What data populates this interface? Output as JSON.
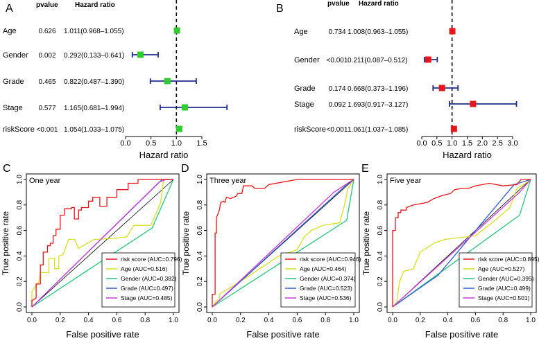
{
  "chart_data": [
    {
      "type": "forest",
      "panel_label": "A",
      "col_pvalue": "pvalue",
      "col_hr": "Hazard ratio",
      "xlabel": "Hazard ratio",
      "xlim": [
        0,
        1.5
      ],
      "xticks": [
        "0.0",
        "0.5",
        "1.0",
        "1.5"
      ],
      "ref_line": 1,
      "color": "#2ecc2e",
      "rows": [
        {
          "label": "Age",
          "pvalue": "0.626",
          "hr_text": "1.011(0.968–1.055)",
          "hr": 1.011,
          "low": 0.968,
          "high": 1.055
        },
        {
          "label": "Gender",
          "pvalue": "0.002",
          "hr_text": "0.292(0.133–0.641)",
          "hr": 0.292,
          "low": 0.133,
          "high": 0.641
        },
        {
          "label": "Grade",
          "pvalue": "0.465",
          "hr_text": "0.822(0.487–1.390)",
          "hr": 0.822,
          "low": 0.487,
          "high": 1.39
        },
        {
          "label": "Stage",
          "pvalue": "0.577",
          "hr_text": "1.165(0.681–1.994)",
          "hr": 1.165,
          "low": 0.681,
          "high": 1.994
        },
        {
          "label": "riskScore",
          "pvalue": "<0.001",
          "hr_text": "1.054(1.033–1.075)",
          "hr": 1.054,
          "low": 1.033,
          "high": 1.075
        }
      ]
    },
    {
      "type": "forest",
      "panel_label": "B",
      "col_pvalue": "pvalue",
      "col_hr": "Hazard ratio",
      "xlabel": "Hazard ratio",
      "xlim": [
        0,
        3.0
      ],
      "xticks": [
        "0.0",
        "0.5",
        "1.0",
        "1.5",
        "2.0",
        "2.5",
        "3.0"
      ],
      "ref_line": 1,
      "color": "#e8151b",
      "rows": [
        {
          "label": "Age",
          "pvalue": "0.734",
          "hr_text": "1.008(0.963–1.055)",
          "hr": 1.008,
          "low": 0.963,
          "high": 1.055
        },
        {
          "label": "Gender",
          "pvalue": "<0.001",
          "hr_text": "0.211(0.087–0.512)",
          "hr": 0.211,
          "low": 0.087,
          "high": 0.512
        },
        {
          "label": "Grade",
          "pvalue": "0.174",
          "hr_text": "0.668(0.373–1.196)",
          "hr": 0.668,
          "low": 0.373,
          "high": 1.196
        },
        {
          "label": "Stage",
          "pvalue": "0.092",
          "hr_text": "1.693(0.917–3.127)",
          "hr": 1.693,
          "low": 0.917,
          "high": 3.127
        },
        {
          "label": "riskScore",
          "pvalue": "<0.001",
          "hr_text": "1.061(1.037–1.085)",
          "hr": 1.061,
          "low": 1.037,
          "high": 1.085
        }
      ]
    },
    {
      "type": "line",
      "panel_label": "C",
      "title": "One year",
      "xlabel": "False positive rate",
      "ylabel": "True positive rate",
      "xlim": [
        0,
        1
      ],
      "ylim": [
        0,
        1
      ],
      "xticks": [
        "0.0",
        "0.2",
        "0.4",
        "0.6",
        "0.8",
        "1.0"
      ],
      "yticks": [
        "0.0",
        "0.2",
        "0.4",
        "0.6",
        "0.8",
        "1.0"
      ],
      "series": [
        {
          "name": "risk score (AUC=0.796)",
          "color": "#e8151b",
          "points": [
            [
              0,
              0
            ],
            [
              0,
              0.05
            ],
            [
              0.03,
              0.07
            ],
            [
              0.03,
              0.18
            ],
            [
              0.06,
              0.18
            ],
            [
              0.06,
              0.33
            ],
            [
              0.08,
              0.33
            ],
            [
              0.08,
              0.43
            ],
            [
              0.11,
              0.43
            ],
            [
              0.11,
              0.48
            ],
            [
              0.13,
              0.48
            ],
            [
              0.13,
              0.5
            ],
            [
              0.15,
              0.5
            ],
            [
              0.15,
              0.56
            ],
            [
              0.17,
              0.56
            ],
            [
              0.17,
              0.61
            ],
            [
              0.2,
              0.61
            ],
            [
              0.2,
              0.72
            ],
            [
              0.23,
              0.72
            ],
            [
              0.23,
              0.77
            ],
            [
              0.28,
              0.77
            ],
            [
              0.28,
              0.78
            ],
            [
              0.3,
              0.78
            ],
            [
              0.3,
              0.69
            ],
            [
              0.33,
              0.69
            ],
            [
              0.33,
              0.76
            ],
            [
              0.35,
              0.76
            ],
            [
              0.35,
              0.78
            ],
            [
              0.4,
              0.78
            ],
            [
              0.4,
              0.83
            ],
            [
              0.43,
              0.83
            ],
            [
              0.43,
              0.86
            ],
            [
              0.48,
              0.86
            ],
            [
              0.48,
              0.79
            ],
            [
              0.53,
              0.79
            ],
            [
              0.53,
              0.86
            ],
            [
              0.6,
              0.86
            ],
            [
              0.6,
              0.92
            ],
            [
              0.68,
              0.92
            ],
            [
              0.68,
              0.97
            ],
            [
              0.75,
              0.97
            ],
            [
              0.75,
              1
            ],
            [
              1,
              1
            ]
          ]
        },
        {
          "name": "Age (AUC=0.516)",
          "color": "#d9e021",
          "points": [
            [
              0,
              0
            ],
            [
              0,
              0.12
            ],
            [
              0.05,
              0.2
            ],
            [
              0.06,
              0.27
            ],
            [
              0.12,
              0.27
            ],
            [
              0.12,
              0.38
            ],
            [
              0.16,
              0.38
            ],
            [
              0.16,
              0.3
            ],
            [
              0.19,
              0.3
            ],
            [
              0.19,
              0.4
            ],
            [
              0.22,
              0.41
            ],
            [
              0.26,
              0.53
            ],
            [
              0.3,
              0.53
            ],
            [
              0.33,
              0.46
            ],
            [
              0.44,
              0.53
            ],
            [
              0.6,
              0.54
            ],
            [
              0.67,
              0.55
            ],
            [
              0.72,
              0.64
            ],
            [
              0.84,
              0.64
            ],
            [
              0.88,
              0.74
            ],
            [
              0.91,
              0.82
            ],
            [
              0.93,
              1
            ],
            [
              1,
              1
            ]
          ]
        },
        {
          "name": "Gender (AUC=0.382)",
          "color": "#27c47a",
          "points": [
            [
              0,
              0
            ],
            [
              0.85,
              0.62
            ],
            [
              1,
              1
            ]
          ]
        },
        {
          "name": "Grade (AUC=0.497)",
          "color": "#2f5bd3",
          "points": [
            [
              0,
              0
            ],
            [
              0.92,
              1
            ],
            [
              1,
              1
            ]
          ]
        },
        {
          "name": "Stage (AUC=0.485)",
          "color": "#c83cd6",
          "points": [
            [
              0,
              0
            ],
            [
              0.9,
              0.98
            ],
            [
              0.95,
              1
            ],
            [
              1,
              1
            ]
          ]
        }
      ]
    },
    {
      "type": "line",
      "panel_label": "D",
      "title": "Three year",
      "xlabel": "False positive rate",
      "ylabel": "True positive rate",
      "xlim": [
        0,
        1
      ],
      "ylim": [
        0,
        1
      ],
      "xticks": [
        "0.0",
        "0.2",
        "0.4",
        "0.6",
        "0.8",
        "1.0"
      ],
      "yticks": [
        "0.0",
        "0.2",
        "0.4",
        "0.6",
        "0.8",
        "1.0"
      ],
      "series": [
        {
          "name": "risk score (AUC=0.946)",
          "color": "#e8151b",
          "points": [
            [
              0,
              0
            ],
            [
              0,
              0.1
            ],
            [
              0.02,
              0.1
            ],
            [
              0.02,
              0.58
            ],
            [
              0.03,
              0.58
            ],
            [
              0.03,
              0.7
            ],
            [
              0.05,
              0.76
            ],
            [
              0.06,
              0.82
            ],
            [
              0.08,
              0.83
            ],
            [
              0.09,
              0.82
            ],
            [
              0.1,
              0.86
            ],
            [
              0.13,
              0.85
            ],
            [
              0.15,
              0.86
            ],
            [
              0.17,
              0.87
            ],
            [
              0.18,
              0.89
            ],
            [
              0.21,
              0.89
            ],
            [
              0.22,
              0.95
            ],
            [
              0.28,
              0.95
            ],
            [
              0.3,
              0.93
            ],
            [
              0.37,
              0.93
            ],
            [
              0.4,
              0.96
            ],
            [
              0.5,
              0.98
            ],
            [
              0.6,
              1
            ],
            [
              1,
              1
            ]
          ]
        },
        {
          "name": "Age (AUC=0.464)",
          "color": "#d9e021",
          "points": [
            [
              0,
              0
            ],
            [
              0.03,
              0.05
            ],
            [
              0.05,
              0.05
            ],
            [
              0.05,
              0.1
            ],
            [
              0.2,
              0.2
            ],
            [
              0.47,
              0.4
            ],
            [
              0.6,
              0.45
            ],
            [
              0.65,
              0.55
            ],
            [
              0.7,
              0.6
            ],
            [
              0.78,
              0.64
            ],
            [
              0.9,
              0.66
            ],
            [
              0.93,
              0.78
            ],
            [
              0.96,
              0.93
            ],
            [
              1,
              1
            ]
          ]
        },
        {
          "name": "Gender (AUC=0.374)",
          "color": "#27c47a",
          "points": [
            [
              0,
              0
            ],
            [
              0.95,
              0.68
            ],
            [
              1,
              1
            ]
          ]
        },
        {
          "name": "Grade (AUC=0.523)",
          "color": "#2f5bd3",
          "points": [
            [
              0,
              0
            ],
            [
              0.95,
              0.96
            ],
            [
              1,
              1
            ]
          ]
        },
        {
          "name": "Stage (AUC=0.536)",
          "color": "#c83cd6",
          "points": [
            [
              0,
              0
            ],
            [
              0.86,
              0.9
            ],
            [
              0.97,
              0.98
            ],
            [
              1,
              1
            ]
          ]
        }
      ]
    },
    {
      "type": "line",
      "panel_label": "E",
      "title": "Five year",
      "xlabel": "False positive rate",
      "ylabel": "True positive rate",
      "xlim": [
        0,
        1
      ],
      "ylim": [
        0,
        1
      ],
      "xticks": [
        "0.0",
        "0.2",
        "0.4",
        "0.6",
        "0.8",
        "1.0"
      ],
      "yticks": [
        "0.0",
        "0.2",
        "0.4",
        "0.6",
        "0.8",
        "1.0"
      ],
      "series": [
        {
          "name": "risk score (AUC=0.895)",
          "color": "#e8151b",
          "points": [
            [
              0,
              0
            ],
            [
              0,
              0.6
            ],
            [
              0.02,
              0.6
            ],
            [
              0.02,
              0.7
            ],
            [
              0.04,
              0.7
            ],
            [
              0.04,
              0.74
            ],
            [
              0.06,
              0.74
            ],
            [
              0.06,
              0.76
            ],
            [
              0.1,
              0.76
            ],
            [
              0.1,
              0.78
            ],
            [
              0.15,
              0.8
            ],
            [
              0.2,
              0.81
            ],
            [
              0.25,
              0.82
            ],
            [
              0.3,
              0.85
            ],
            [
              0.35,
              0.87
            ],
            [
              0.38,
              0.88
            ],
            [
              0.42,
              0.89
            ],
            [
              0.45,
              0.92
            ],
            [
              0.5,
              0.93
            ],
            [
              0.55,
              0.93
            ],
            [
              0.6,
              0.95
            ],
            [
              0.7,
              0.97
            ],
            [
              0.8,
              0.95
            ],
            [
              0.9,
              0.96
            ],
            [
              0.93,
              1
            ],
            [
              1,
              1
            ]
          ]
        },
        {
          "name": "Age (AUC=0.527)",
          "color": "#d9e021",
          "points": [
            [
              0,
              0
            ],
            [
              0.03,
              0.04
            ],
            [
              0.05,
              0.2
            ],
            [
              0.08,
              0.28
            ],
            [
              0.15,
              0.3
            ],
            [
              0.2,
              0.43
            ],
            [
              0.3,
              0.5
            ],
            [
              0.38,
              0.53
            ],
            [
              0.45,
              0.54
            ],
            [
              0.6,
              0.56
            ],
            [
              0.72,
              0.66
            ],
            [
              0.85,
              0.78
            ],
            [
              0.9,
              0.93
            ],
            [
              0.95,
              0.96
            ],
            [
              1,
              1
            ]
          ]
        },
        {
          "name": "Gender (AUC=0.395)",
          "color": "#27c47a",
          "points": [
            [
              0,
              0
            ],
            [
              0.92,
              0.72
            ],
            [
              1,
              1
            ]
          ]
        },
        {
          "name": "Grade (AUC=0.499)",
          "color": "#2f5bd3",
          "points": [
            [
              0,
              0
            ],
            [
              0.33,
              0.25
            ],
            [
              0.88,
              0.96
            ],
            [
              1,
              1
            ]
          ]
        },
        {
          "name": "Stage (AUC=0.501)",
          "color": "#c83cd6",
          "points": [
            [
              0,
              0
            ],
            [
              0.92,
              0.9
            ],
            [
              1,
              1
            ]
          ]
        }
      ]
    }
  ]
}
